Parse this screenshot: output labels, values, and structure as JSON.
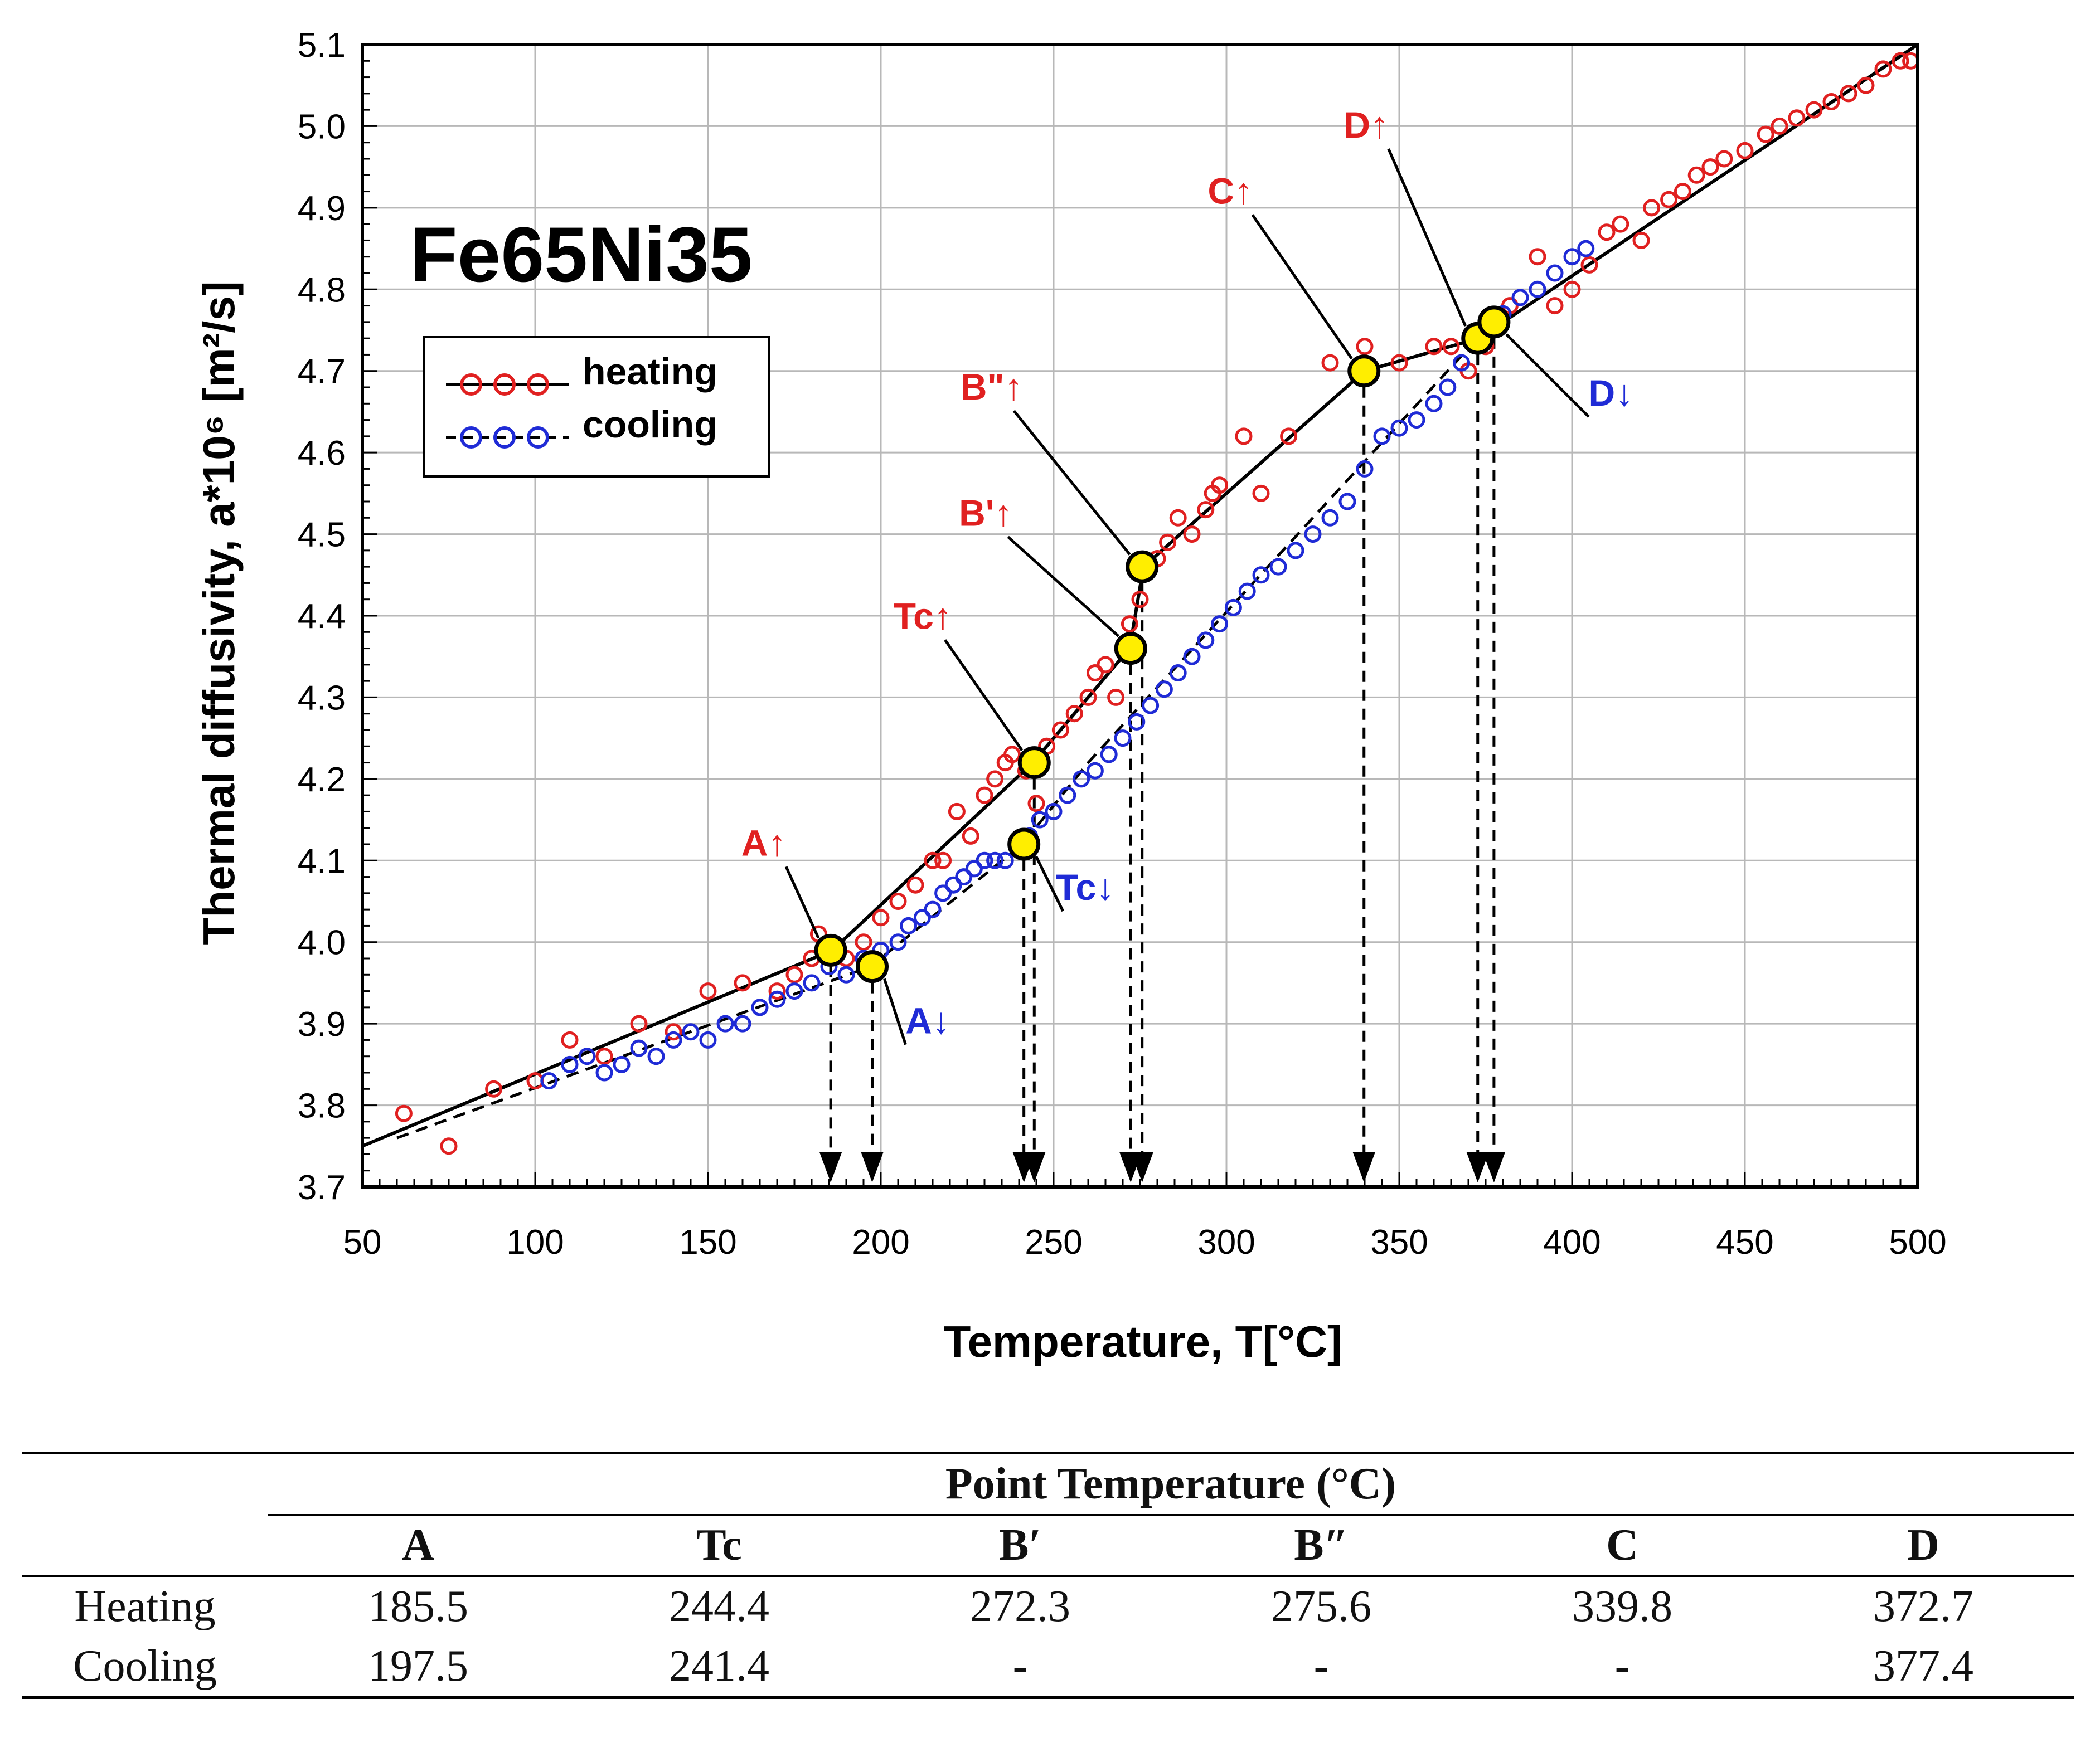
{
  "chart_data": {
    "type": "scatter",
    "title": "Fe65Ni35",
    "xlabel": "Temperature, T[°C]",
    "ylabel": "Thermal diffusivity, a*10⁶ [m²/s]",
    "xlim": [
      50,
      500
    ],
    "ylim": [
      3.7,
      5.1
    ],
    "x_ticks": [
      "50",
      "100",
      "150",
      "200",
      "250",
      "300",
      "350",
      "400",
      "450",
      "500"
    ],
    "y_ticks": [
      "3.7",
      "3.8",
      "3.9",
      "4.0",
      "4.1",
      "4.2",
      "4.3",
      "4.4",
      "4.5",
      "4.6",
      "4.7",
      "4.8",
      "4.9",
      "5.0",
      "5.1"
    ],
    "grid": true,
    "legend": [
      "heating",
      "cooling"
    ],
    "legend_position": "upper-left",
    "series": [
      {
        "name": "heating",
        "color": "#e02020",
        "points": [
          [
            62,
            3.79
          ],
          [
            75,
            3.75
          ],
          [
            88,
            3.82
          ],
          [
            100,
            3.83
          ],
          [
            110,
            3.88
          ],
          [
            120,
            3.86
          ],
          [
            130,
            3.9
          ],
          [
            140,
            3.89
          ],
          [
            150,
            3.94
          ],
          [
            160,
            3.95
          ],
          [
            170,
            3.94
          ],
          [
            175,
            3.96
          ],
          [
            180,
            3.98
          ],
          [
            182,
            4.01
          ],
          [
            186,
            3.99
          ],
          [
            190,
            3.98
          ],
          [
            195,
            4.0
          ],
          [
            200,
            4.03
          ],
          [
            205,
            4.05
          ],
          [
            210,
            4.07
          ],
          [
            215,
            4.1
          ],
          [
            218,
            4.1
          ],
          [
            222,
            4.16
          ],
          [
            226,
            4.13
          ],
          [
            230,
            4.18
          ],
          [
            233,
            4.2
          ],
          [
            236,
            4.22
          ],
          [
            238,
            4.23
          ],
          [
            242,
            4.21
          ],
          [
            245,
            4.17
          ],
          [
            248,
            4.24
          ],
          [
            252,
            4.26
          ],
          [
            256,
            4.28
          ],
          [
            260,
            4.3
          ],
          [
            262,
            4.33
          ],
          [
            265,
            4.34
          ],
          [
            268,
            4.3
          ],
          [
            270,
            4.36
          ],
          [
            272,
            4.39
          ],
          [
            275,
            4.42
          ],
          [
            277,
            4.46
          ],
          [
            280,
            4.47
          ],
          [
            283,
            4.49
          ],
          [
            286,
            4.52
          ],
          [
            290,
            4.5
          ],
          [
            294,
            4.53
          ],
          [
            296,
            4.55
          ],
          [
            298,
            4.56
          ],
          [
            305,
            4.62
          ],
          [
            310,
            4.55
          ],
          [
            318,
            4.62
          ],
          [
            330,
            4.71
          ],
          [
            340,
            4.73
          ],
          [
            350,
            4.71
          ],
          [
            360,
            4.73
          ],
          [
            365,
            4.73
          ],
          [
            370,
            4.7
          ],
          [
            375,
            4.73
          ],
          [
            382,
            4.78
          ],
          [
            390,
            4.84
          ],
          [
            395,
            4.78
          ],
          [
            400,
            4.8
          ],
          [
            405,
            4.83
          ],
          [
            410,
            4.87
          ],
          [
            414,
            4.88
          ],
          [
            420,
            4.86
          ],
          [
            423,
            4.9
          ],
          [
            428,
            4.91
          ],
          [
            432,
            4.92
          ],
          [
            436,
            4.94
          ],
          [
            440,
            4.95
          ],
          [
            444,
            4.96
          ],
          [
            450,
            4.97
          ],
          [
            456,
            4.99
          ],
          [
            460,
            5.0
          ],
          [
            465,
            5.01
          ],
          [
            470,
            5.02
          ],
          [
            475,
            5.03
          ],
          [
            480,
            5.04
          ],
          [
            485,
            5.05
          ],
          [
            490,
            5.07
          ],
          [
            495,
            5.08
          ],
          [
            498,
            5.08
          ]
        ]
      },
      {
        "name": "cooling",
        "color": "#1f2bd6",
        "points": [
          [
            104,
            3.83
          ],
          [
            110,
            3.85
          ],
          [
            115,
            3.86
          ],
          [
            120,
            3.84
          ],
          [
            125,
            3.85
          ],
          [
            130,
            3.87
          ],
          [
            135,
            3.86
          ],
          [
            140,
            3.88
          ],
          [
            145,
            3.89
          ],
          [
            150,
            3.88
          ],
          [
            155,
            3.9
          ],
          [
            160,
            3.9
          ],
          [
            165,
            3.92
          ],
          [
            170,
            3.93
          ],
          [
            175,
            3.94
          ],
          [
            180,
            3.95
          ],
          [
            185,
            3.97
          ],
          [
            190,
            3.96
          ],
          [
            195,
            3.98
          ],
          [
            200,
            3.99
          ],
          [
            205,
            4.0
          ],
          [
            208,
            4.02
          ],
          [
            212,
            4.03
          ],
          [
            215,
            4.04
          ],
          [
            218,
            4.06
          ],
          [
            221,
            4.07
          ],
          [
            224,
            4.08
          ],
          [
            227,
            4.09
          ],
          [
            230,
            4.1
          ],
          [
            233,
            4.1
          ],
          [
            236,
            4.1
          ],
          [
            240,
            4.12
          ],
          [
            243,
            4.13
          ],
          [
            246,
            4.15
          ],
          [
            250,
            4.16
          ],
          [
            254,
            4.18
          ],
          [
            258,
            4.2
          ],
          [
            262,
            4.21
          ],
          [
            266,
            4.23
          ],
          [
            270,
            4.25
          ],
          [
            274,
            4.27
          ],
          [
            278,
            4.29
          ],
          [
            282,
            4.31
          ],
          [
            286,
            4.33
          ],
          [
            290,
            4.35
          ],
          [
            294,
            4.37
          ],
          [
            298,
            4.39
          ],
          [
            302,
            4.41
          ],
          [
            306,
            4.43
          ],
          [
            310,
            4.45
          ],
          [
            315,
            4.46
          ],
          [
            320,
            4.48
          ],
          [
            325,
            4.5
          ],
          [
            330,
            4.52
          ],
          [
            335,
            4.54
          ],
          [
            340,
            4.58
          ],
          [
            345,
            4.62
          ],
          [
            350,
            4.63
          ],
          [
            355,
            4.64
          ],
          [
            360,
            4.66
          ],
          [
            364,
            4.68
          ],
          [
            368,
            4.71
          ],
          [
            372,
            4.74
          ],
          [
            376,
            4.76
          ],
          [
            380,
            4.77
          ],
          [
            385,
            4.79
          ],
          [
            390,
            4.8
          ],
          [
            395,
            4.82
          ],
          [
            400,
            4.84
          ],
          [
            404,
            4.85
          ]
        ]
      }
    ],
    "fit_lines": [
      {
        "style": "solid",
        "points": [
          [
            50,
            3.75
          ],
          [
            186,
            3.99
          ],
          [
            244,
            4.22
          ],
          [
            272,
            4.36
          ],
          [
            276,
            4.46
          ],
          [
            340,
            4.7
          ],
          [
            373,
            4.74
          ],
          [
            500,
            5.1
          ]
        ]
      },
      {
        "style": "dashed",
        "points": [
          [
            60,
            3.76
          ],
          [
            197,
            3.97
          ],
          [
            241,
            4.12
          ],
          [
            260,
            4.22
          ],
          [
            377,
            4.76
          ]
        ]
      }
    ],
    "markers": [
      {
        "label": "A↑",
        "x": 185.5,
        "y": 3.99,
        "color": "#e02020"
      },
      {
        "label": "A↓",
        "x": 197.5,
        "y": 3.97,
        "color": "#1f2bd6"
      },
      {
        "label": "Tc↑",
        "x": 244.4,
        "y": 4.22,
        "color": "#e02020"
      },
      {
        "label": "Tc↓",
        "x": 241.4,
        "y": 4.12,
        "color": "#1f2bd6"
      },
      {
        "label": "B'↑",
        "x": 272.3,
        "y": 4.36,
        "color": "#e02020"
      },
      {
        "label": "B\"↑",
        "x": 275.6,
        "y": 4.46,
        "color": "#e02020"
      },
      {
        "label": "C↑",
        "x": 339.8,
        "y": 4.7,
        "color": "#e02020"
      },
      {
        "label": "D↑",
        "x": 372.7,
        "y": 4.74,
        "color": "#e02020"
      },
      {
        "label": "D↓",
        "x": 377.4,
        "y": 4.76,
        "color": "#1f2bd6"
      }
    ]
  },
  "table": {
    "group_header": "Point Temperature (°C)",
    "columns": [
      "A",
      "Tc",
      "B′",
      "B″",
      "C",
      "D"
    ],
    "rows": [
      {
        "label": "Heating",
        "values": [
          "185.5",
          "244.4",
          "272.3",
          "275.6",
          "339.8",
          "372.7"
        ]
      },
      {
        "label": "Cooling",
        "values": [
          "197.5",
          "241.4",
          "-",
          "-",
          "-",
          "377.4"
        ]
      }
    ]
  }
}
